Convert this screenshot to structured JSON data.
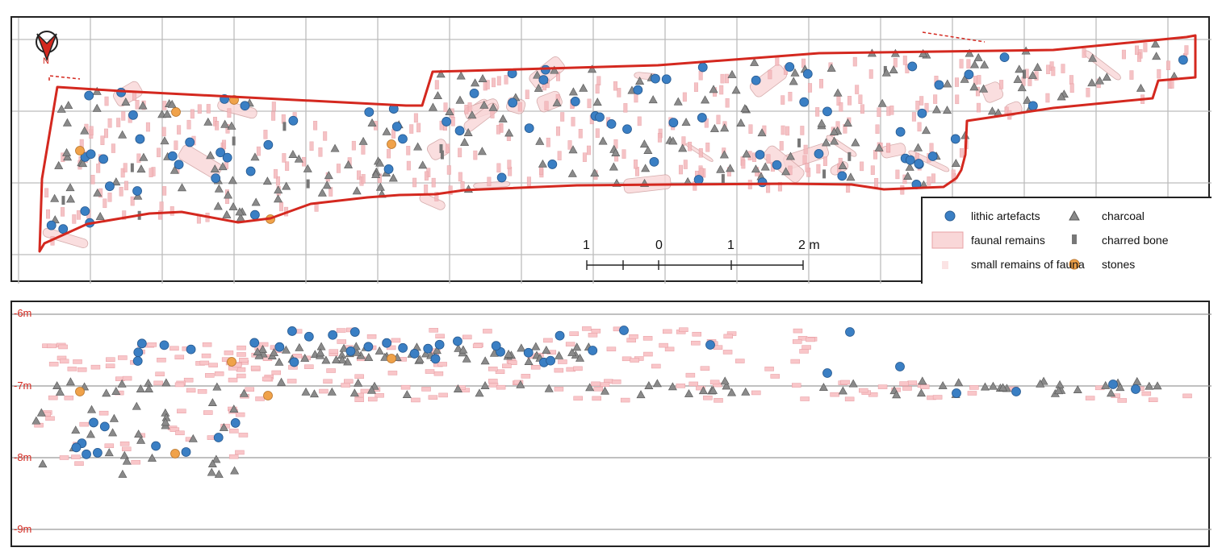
{
  "plan": {
    "north_label": "N",
    "scale": {
      "ticks": [
        "1",
        "0",
        "1",
        "2 m"
      ]
    },
    "legend": {
      "items": [
        {
          "key": "lithic",
          "label": "lithic artefacts",
          "symbol": "blue-circle"
        },
        {
          "key": "charcoal",
          "label": "charcoal",
          "symbol": "grey-triangle"
        },
        {
          "key": "faunal",
          "label": "faunal remains",
          "symbol": "pink-rect"
        },
        {
          "key": "charred",
          "label": "charred bone",
          "symbol": "grey-bar"
        },
        {
          "key": "small_fauna",
          "label": "small remains of fauna",
          "symbol": "light-pink-rect"
        },
        {
          "key": "stones",
          "label": "stones",
          "symbol": "orange-circle"
        }
      ]
    }
  },
  "section": {
    "depth_labels": [
      "-6m",
      "-7m",
      "-8m",
      "-9m"
    ]
  },
  "colors": {
    "lithic": "#3a7fc4",
    "charcoal": "#8a8a8a",
    "faunal": "#f4b8bb",
    "stones": "#f0a24a",
    "outline": "#d4281f",
    "grid": "#bcbcbc"
  }
}
